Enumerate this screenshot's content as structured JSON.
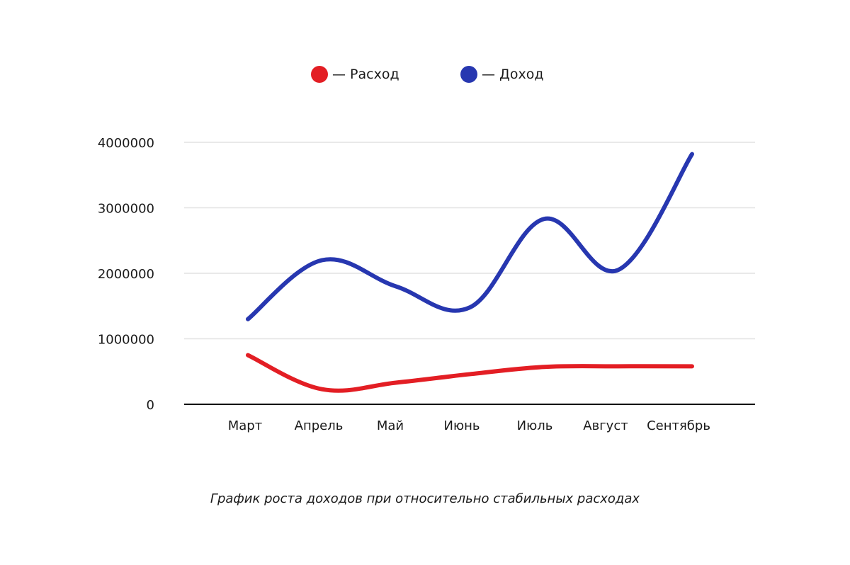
{
  "chart_data": {
    "type": "line",
    "title": "",
    "caption": "График роста доходов при относительно стабильных расходах",
    "xlabel": "",
    "ylabel": "",
    "categories": [
      "Март",
      "Апрель",
      "Май",
      "Июнь",
      "Июль",
      "Август",
      "Сентябрь"
    ],
    "ylim": [
      0,
      4000000
    ],
    "yticks": [
      0,
      1000000,
      2000000,
      3000000,
      4000000
    ],
    "ytick_labels": [
      "0",
      "1000000",
      "2000000",
      "3000000",
      "4000000"
    ],
    "grid": true,
    "legend_position": "top",
    "series": [
      {
        "name": "— Расход",
        "color": "#e31e24",
        "values": [
          750000,
          230000,
          330000,
          460000,
          570000,
          580000,
          580000
        ]
      },
      {
        "name": "— Доход",
        "color": "#2737b0",
        "values": [
          1300000,
          2200000,
          1800000,
          1480000,
          2830000,
          2050000,
          3820000
        ]
      }
    ]
  }
}
